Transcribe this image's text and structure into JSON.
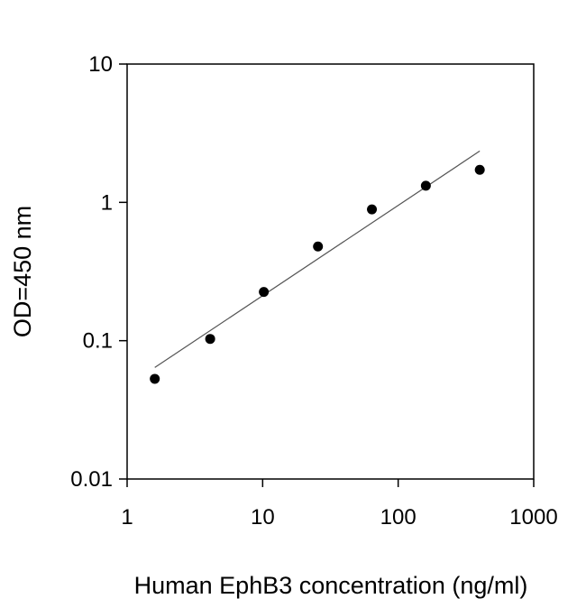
{
  "chart_data": {
    "type": "scatter",
    "title": "",
    "xlabel": "Human EphB3 concentration (ng/ml)",
    "ylabel": "OD=450 nm",
    "x_scale": "log",
    "y_scale": "log",
    "xlim": [
      1,
      1000
    ],
    "ylim": [
      0.01,
      10
    ],
    "x_ticks": [
      {
        "value": 1,
        "label": "1"
      },
      {
        "value": 10,
        "label": "10"
      },
      {
        "value": 100,
        "label": "100"
      },
      {
        "value": 1000,
        "label": "1000"
      }
    ],
    "y_ticks": [
      {
        "value": 0.01,
        "label": "0.01"
      },
      {
        "value": 0.1,
        "label": "0.1"
      },
      {
        "value": 1,
        "label": "1"
      },
      {
        "value": 10,
        "label": "10"
      }
    ],
    "grid": false,
    "legend": "none",
    "series": [
      {
        "points": [
          {
            "x": 1.6,
            "y": 0.053
          },
          {
            "x": 4.1,
            "y": 0.103
          },
          {
            "x": 10.2,
            "y": 0.225
          },
          {
            "x": 25.6,
            "y": 0.48
          },
          {
            "x": 64,
            "y": 0.89
          },
          {
            "x": 160,
            "y": 1.32
          },
          {
            "x": 400,
            "y": 1.72
          }
        ],
        "color": "#000000"
      }
    ],
    "fit_line": {
      "type": "log-log linear",
      "start": {
        "x": 1.6,
        "y": 0.064
      },
      "end": {
        "x": 400,
        "y": 2.35
      },
      "color": "#555555"
    }
  }
}
